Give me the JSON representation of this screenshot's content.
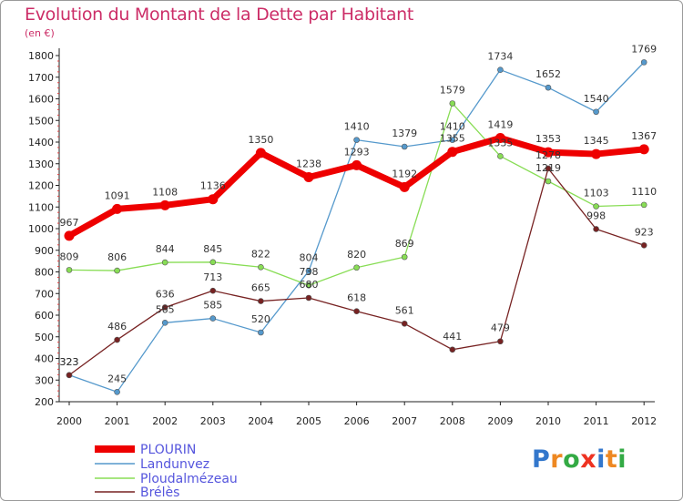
{
  "title": "Evolution du Montant de la Dette par Habitant",
  "unit": "(en €)",
  "logo": "Proxiti",
  "chart_data": {
    "type": "line",
    "x": [
      "2000",
      "2001",
      "2002",
      "2003",
      "2004",
      "2005",
      "2006",
      "2007",
      "2008",
      "2009",
      "2010",
      "2011",
      "2012"
    ],
    "ylim": [
      200,
      1800
    ],
    "yticks": [
      200,
      300,
      400,
      500,
      600,
      700,
      800,
      900,
      1000,
      1100,
      1200,
      1300,
      1400,
      1500,
      1600,
      1700,
      1800
    ],
    "grid": false,
    "legend_position": "bottom-left",
    "series": [
      {
        "name": "PLOURIN",
        "color": "#ee0000",
        "values": [
          967,
          1091,
          1108,
          1136,
          1350,
          1238,
          1293,
          1192,
          1355,
          1419,
          1353,
          1345,
          1367
        ]
      },
      {
        "name": "Landunvez",
        "color": "#5599cc",
        "values": [
          323,
          245,
          565,
          585,
          520,
          804,
          1410,
          1379,
          1410,
          1734,
          1652,
          1540,
          1769
        ]
      },
      {
        "name": "Ploudalmézeau",
        "color": "#88dd55",
        "values": [
          809,
          806,
          844,
          845,
          822,
          738,
          820,
          869,
          1579,
          1335,
          1219,
          1103,
          1110
        ]
      },
      {
        "name": "Brélès",
        "color": "#772222",
        "values": [
          323,
          486,
          636,
          713,
          665,
          680,
          618,
          561,
          441,
          479,
          1278,
          998,
          923
        ]
      }
    ]
  }
}
